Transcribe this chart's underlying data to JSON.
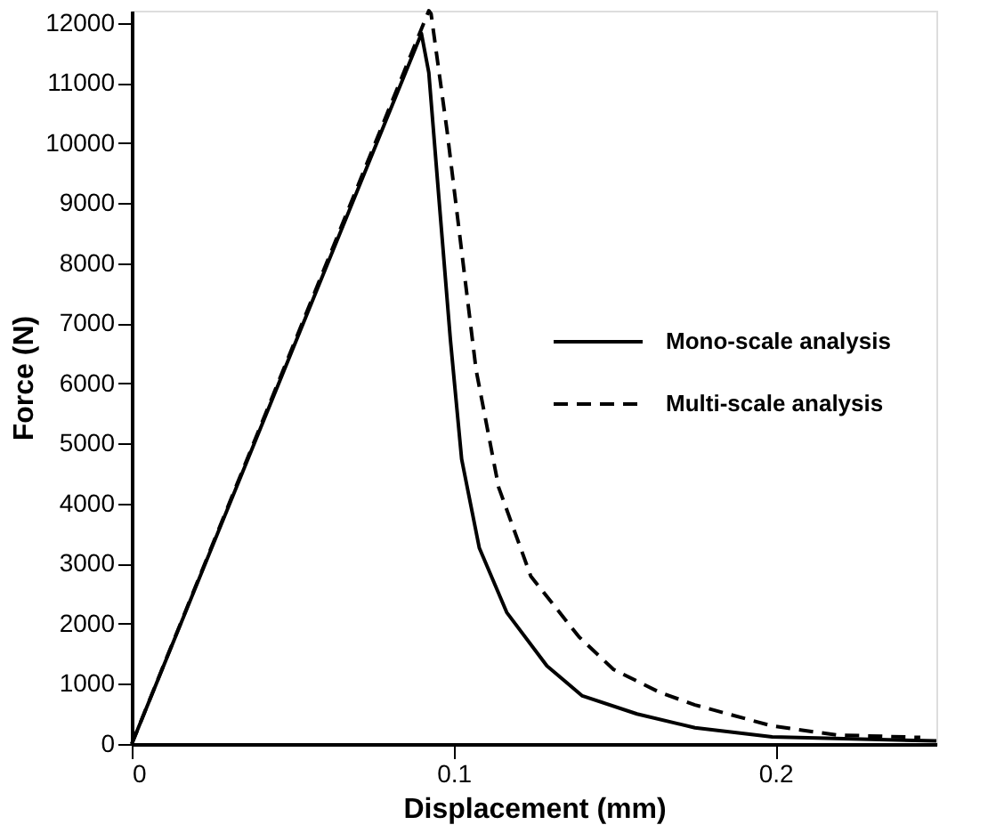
{
  "chart_data": {
    "type": "line",
    "xlabel": "Displacement (mm)",
    "ylabel": "Force (N)",
    "xlim": [
      0,
      0.25
    ],
    "xticks": [
      0,
      0.1,
      0.2
    ],
    "ylim": [
      0,
      12200
    ],
    "yticks": [
      0,
      1000,
      2000,
      3000,
      4000,
      5000,
      6000,
      7000,
      8000,
      9000,
      10000,
      11000,
      12000
    ],
    "grid": false,
    "legend": "right",
    "marker": "none",
    "series": [
      {
        "name": "Mono-scale analysis",
        "color": "#000000",
        "line_style": "solid",
        "x": [
          0,
          0.09,
          0.0923,
          0.096,
          0.099,
          0.1025,
          0.108,
          0.1165,
          0.129,
          0.14,
          0.157,
          0.175,
          0.199,
          0.25
        ],
        "values": [
          0,
          11820,
          11170,
          8710,
          6730,
          4740,
          3260,
          2190,
          1300,
          800,
          500,
          270,
          120,
          50
        ]
      },
      {
        "name": "Multi-scale analysis",
        "color": "#000000",
        "line_style": "dashed",
        "x": [
          0,
          0.0923,
          0.093,
          0.098,
          0.1025,
          0.107,
          0.114,
          0.124,
          0.139,
          0.1497,
          0.164,
          0.175,
          0.199,
          0.219,
          0.245
        ],
        "values": [
          0,
          12200,
          12150,
          10190,
          8200,
          6220,
          4270,
          2790,
          1780,
          1240,
          860,
          650,
          300,
          150,
          110
        ]
      }
    ]
  }
}
